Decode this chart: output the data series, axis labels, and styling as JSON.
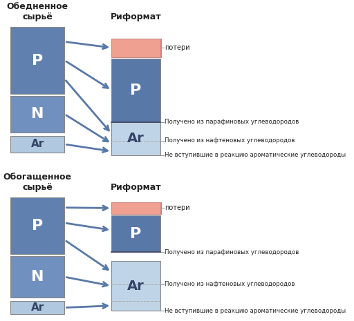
{
  "title_top1": "Обедненное\nсырьё",
  "title_top2": "Риформат",
  "title_bot1": "Обогащенное\nсырьё",
  "title_bot2": "Риформат",
  "label_losses": "потери",
  "label_paraf": "Получено из парафиновых углеводородов",
  "label_naft": "Получено из нафтеновых углеводородов",
  "label_ar": "Не вступившие в реакцию ароматические углеводороды",
  "color_p_dark": "#6080b0",
  "color_n_mid": "#7090c0",
  "color_ar_light": "#b0c8e0",
  "color_losses": "#f0a090",
  "color_reformate_p_dark": "#5878a8",
  "color_reformate_ar_light": "#c0d4e8",
  "arrow_color": "#5878a8",
  "bg_color": "#ffffff",
  "font_color": "#222222"
}
